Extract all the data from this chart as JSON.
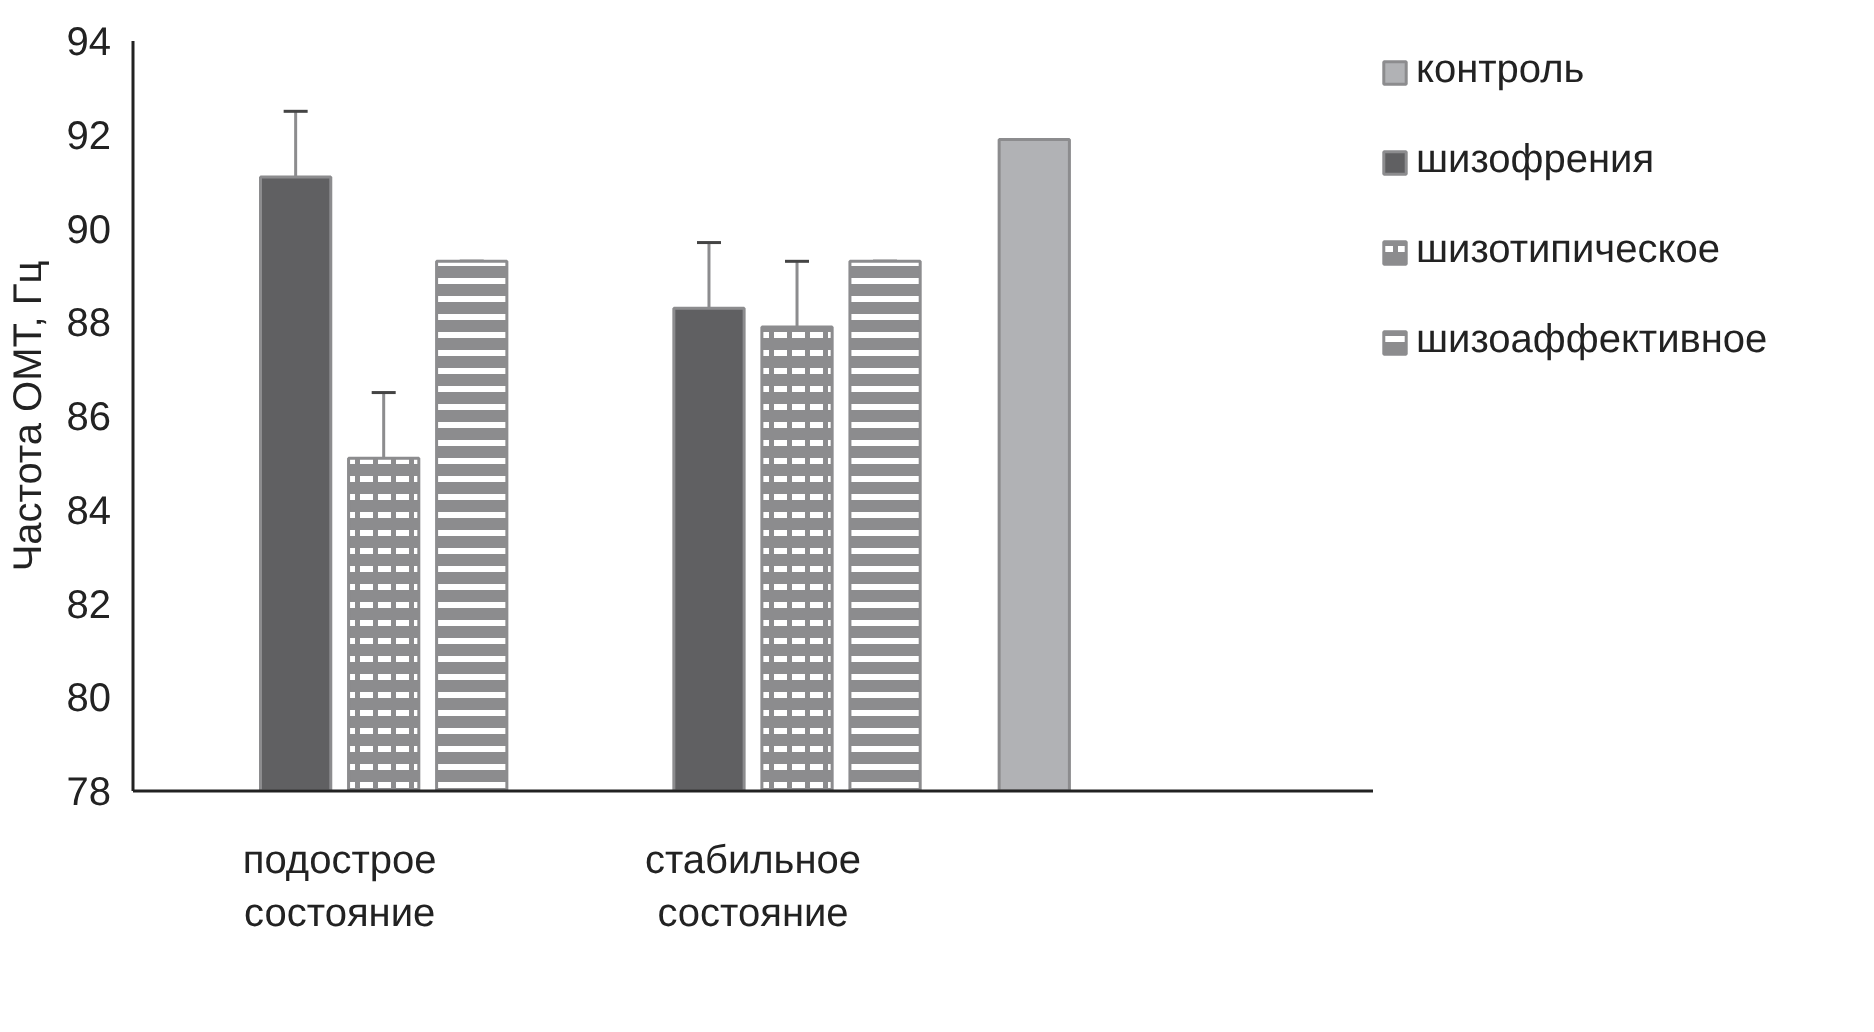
{
  "chart_data": {
    "type": "bar",
    "ylabel": "Частота ОМТ, Гц",
    "categories": [
      "подострое состояние",
      "стабильное состояние",
      null
    ],
    "series": [
      {
        "name": "контроль",
        "color": "#b1b2b5",
        "values": [
          null,
          null,
          91.9
        ]
      },
      {
        "name": "шизофрения",
        "color": "#606062",
        "values": [
          91.1,
          88.3,
          null
        ],
        "errors": [
          1.4,
          1.4,
          null
        ]
      },
      {
        "name": "шизотипическое",
        "color": "#8c8c8e",
        "values": [
          85.1,
          87.9,
          null
        ],
        "errors": [
          1.4,
          1.4,
          null
        ]
      },
      {
        "name": "шизоаффективное",
        "color": "#8c8c8e",
        "values": [
          89.3,
          89.3,
          null
        ],
        "errors": [
          0,
          0,
          null
        ]
      }
    ],
    "ylim": [
      78,
      94
    ],
    "yticks": [
      78,
      80,
      82,
      84,
      86,
      88,
      90,
      92,
      94
    ],
    "grid": false,
    "legend": "right"
  }
}
